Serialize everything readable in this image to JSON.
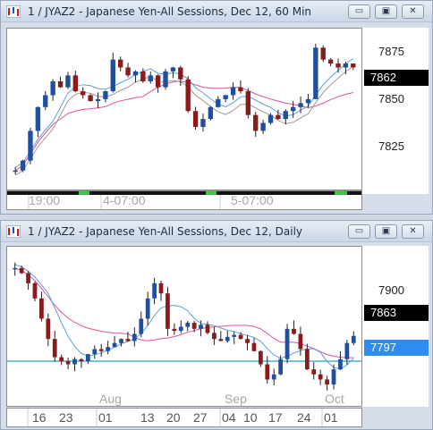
{
  "top": {
    "title": "1 / JYAZ2 - Japanese Yen-All Sessions, Dec 12, 60 Min",
    "y_labels": [
      {
        "text": "7875",
        "value": 7875
      },
      {
        "text": "7850",
        "value": 7850
      },
      {
        "text": "7825",
        "value": 7825
      }
    ],
    "price_tag": {
      "text": "7862",
      "value": 7862
    },
    "x_labels": [
      "19:00",
      "4-07:00",
      "5-07:00"
    ],
    "colors": {
      "up": "#1f4fa0",
      "down": "#8b1a1a",
      "fast_ma": "#5aa0d8",
      "slow_ma": "#e0509a",
      "envelope": "#9a9a9a"
    }
  },
  "bottom": {
    "title": "1 / JYAZ2 - Japanese Yen-All Sessions, Dec 12, Daily",
    "y_labels": [
      {
        "text": "7900",
        "value": 7900
      }
    ],
    "price_tag": {
      "text": "7863",
      "value": 7863
    },
    "line_tag": {
      "text": "7797",
      "value": 7797
    },
    "month_labels": [
      "Aug",
      "Sep",
      "Oct"
    ],
    "day_labels": [
      "16",
      "23",
      "01",
      "13",
      "20",
      "27",
      "04",
      "10",
      "17",
      "24",
      "01"
    ],
    "colors": {
      "up": "#1f4fa0",
      "down": "#8b1a1a",
      "fast_ma": "#5aa0d8",
      "slow_ma": "#e0509a",
      "hline": "#2aa0c0"
    }
  },
  "buttons": {
    "minimize": "▭",
    "restore": "▣",
    "close": "✕"
  }
}
